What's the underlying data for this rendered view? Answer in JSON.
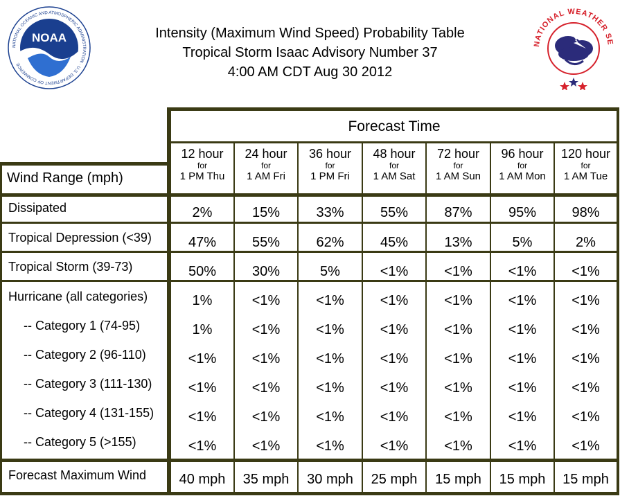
{
  "header": {
    "title_line1": "Intensity (Maximum Wind Speed) Probability Table",
    "title_line2": "Tropical Storm Isaac Advisory Number 37",
    "title_line3": "4:00 AM CDT Aug 30 2012"
  },
  "logos": {
    "noaa": {
      "icon": "noaa-logo",
      "text": "NOAA",
      "ring_text": "NATIONAL OCEANIC AND ATMOSPHERIC ADMINISTRATION · U.S. DEPARTMENT OF COMMERCE"
    },
    "nws": {
      "icon": "nws-logo",
      "ring_text": "NATIONAL WEATHER SERVICE"
    }
  },
  "colors": {
    "frame": "#3a3a14",
    "noaa_blue": "#1a3f8f",
    "nws_red": "#d6212b",
    "nws_navy": "#2b2b7a"
  },
  "table": {
    "forecast_time_label": "Forecast Time",
    "wind_range_label": "Wind Range (mph)",
    "columns": [
      {
        "hours": "12 hour",
        "for": "for",
        "when": "1 PM Thu"
      },
      {
        "hours": "24 hour",
        "for": "for",
        "when": "1 AM Fri"
      },
      {
        "hours": "36 hour",
        "for": "for",
        "when": "1 PM Fri"
      },
      {
        "hours": "48 hour",
        "for": "for",
        "when": "1 AM Sat"
      },
      {
        "hours": "72 hour",
        "for": "for",
        "when": "1 AM Sun"
      },
      {
        "hours": "96 hour",
        "for": "for",
        "when": "1 AM Mon"
      },
      {
        "hours": "120 hour",
        "for": "for",
        "when": "1 AM Tue"
      }
    ],
    "rows": [
      {
        "label": "Dissipated",
        "values": [
          "2%",
          "15%",
          "33%",
          "55%",
          "87%",
          "95%",
          "98%"
        ]
      },
      {
        "label": "Tropical Depression (<39)",
        "values": [
          "47%",
          "55%",
          "62%",
          "45%",
          "13%",
          "5%",
          "2%"
        ]
      },
      {
        "label": "Tropical Storm (39-73)",
        "values": [
          "50%",
          "30%",
          "5%",
          "<1%",
          "<1%",
          "<1%",
          "<1%"
        ]
      },
      {
        "label": "Hurricane (all categories)",
        "values": [
          "1%",
          "<1%",
          "<1%",
          "<1%",
          "<1%",
          "<1%",
          "<1%"
        ]
      },
      {
        "label": "-- Category 1 (74-95)",
        "values": [
          "1%",
          "<1%",
          "<1%",
          "<1%",
          "<1%",
          "<1%",
          "<1%"
        ]
      },
      {
        "label": "-- Category 2 (96-110)",
        "values": [
          "<1%",
          "<1%",
          "<1%",
          "<1%",
          "<1%",
          "<1%",
          "<1%"
        ]
      },
      {
        "label": "-- Category 3 (111-130)",
        "values": [
          "<1%",
          "<1%",
          "<1%",
          "<1%",
          "<1%",
          "<1%",
          "<1%"
        ]
      },
      {
        "label": "-- Category 4 (131-155)",
        "values": [
          "<1%",
          "<1%",
          "<1%",
          "<1%",
          "<1%",
          "<1%",
          "<1%"
        ]
      },
      {
        "label": "-- Category 5 (>155)",
        "values": [
          "<1%",
          "<1%",
          "<1%",
          "<1%",
          "<1%",
          "<1%",
          "<1%"
        ]
      },
      {
        "label": "Forecast Maximum Wind",
        "values": [
          "40 mph",
          "35 mph",
          "30 mph",
          "25 mph",
          "15 mph",
          "15 mph",
          "15 mph"
        ]
      }
    ]
  }
}
